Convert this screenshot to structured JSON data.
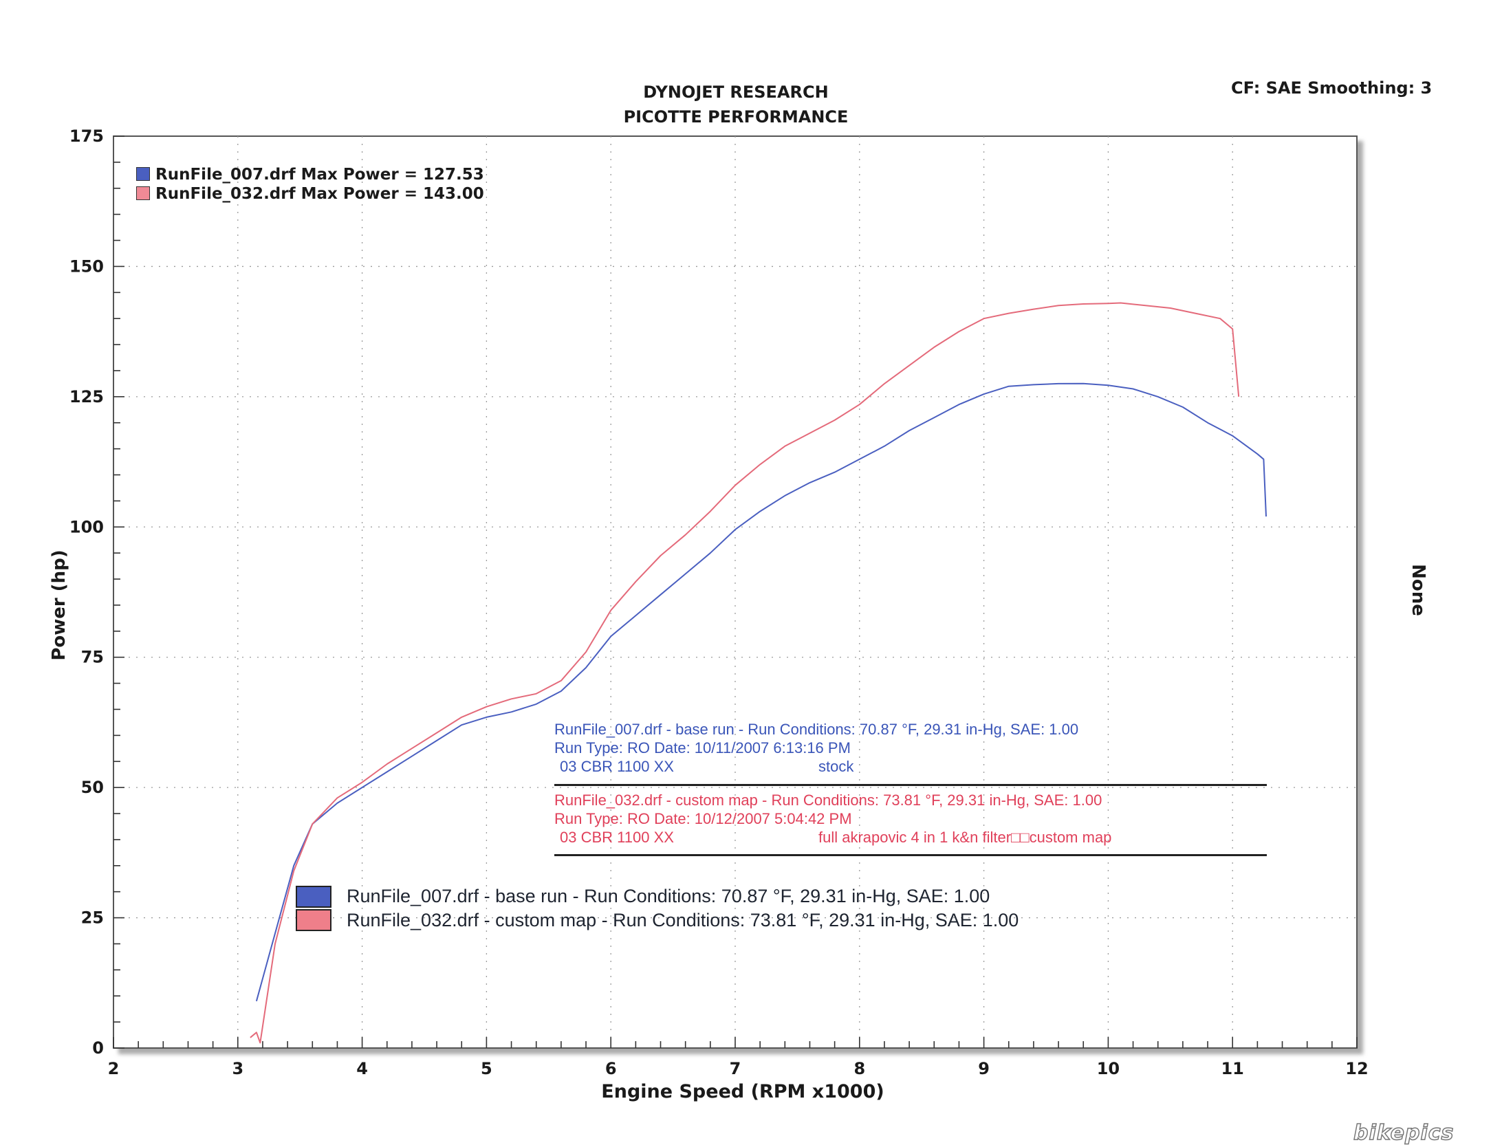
{
  "header": {
    "title_line1": "DYNOJET RESEARCH",
    "title_line2": "PICOTTE PERFORMANCE",
    "cf_smoothing": "CF: SAE  Smoothing: 3"
  },
  "right_axis_label": "None",
  "top_legend": [
    {
      "text": "RunFile_007.drf Max Power = 127.53",
      "color": "#4a5fc0"
    },
    {
      "text": "RunFile_032.drf Max Power = 143.00",
      "color": "#e46a7a"
    }
  ],
  "run_conditions": {
    "run1": {
      "line1": "RunFile_007.drf - base run  -  Run Conditions: 70.87 °F, 29.31 in-Hg, SAE: 1.00",
      "line2": "Run Type: RO  Date: 10/11/2007 6:13:16 PM",
      "line3a": "03 CBR 1100 XX",
      "line3b": "stock",
      "color": "#3a55b8"
    },
    "run2": {
      "line1": "RunFile_032.drf - custom map  -  Run Conditions: 73.81 °F, 29.31 in-Hg, SAE: 1.00",
      "line2": "Run Type: RO  Date: 10/12/2007 5:04:42 PM",
      "line3a": "03 CBR 1100 XX",
      "line3b": "full akrapovic 4 in 1  k&n filter□□custom map",
      "color": "#e0405a"
    }
  },
  "bottom_legend": [
    {
      "text": "RunFile_007.drf - base run  -  Run Conditions: 70.87 °F, 29.31 in-Hg, SAE: 1.00",
      "color": "#4a5fc0"
    },
    {
      "text": "RunFile_032.drf - custom map  -  Run Conditions: 73.81 °F, 29.31 in-Hg, SAE: 1.00",
      "color": "#ef7f8a"
    }
  ],
  "watermark": "bikepics",
  "chart_data": {
    "type": "line",
    "xlabel": "Engine Speed (RPM x1000)",
    "ylabel": "Power (hp)",
    "xlim": [
      2,
      12
    ],
    "ylim": [
      0,
      175
    ],
    "x_ticks": [
      2,
      3,
      4,
      5,
      6,
      7,
      8,
      9,
      10,
      11,
      12
    ],
    "y_ticks": [
      0,
      25,
      50,
      75,
      100,
      125,
      150,
      175
    ],
    "grid": true,
    "legend_position": "top-left",
    "series": [
      {
        "name": "RunFile_007.drf",
        "color": "#4a5fc0",
        "points": [
          [
            3.15,
            9
          ],
          [
            3.3,
            22
          ],
          [
            3.45,
            35
          ],
          [
            3.6,
            43
          ],
          [
            3.8,
            47
          ],
          [
            4.0,
            50
          ],
          [
            4.2,
            53
          ],
          [
            4.4,
            56
          ],
          [
            4.6,
            59
          ],
          [
            4.8,
            62
          ],
          [
            5.0,
            63.5
          ],
          [
            5.2,
            64.5
          ],
          [
            5.4,
            66
          ],
          [
            5.6,
            68.5
          ],
          [
            5.8,
            73
          ],
          [
            6.0,
            79
          ],
          [
            6.2,
            83
          ],
          [
            6.4,
            87
          ],
          [
            6.6,
            91
          ],
          [
            6.8,
            95
          ],
          [
            7.0,
            99.5
          ],
          [
            7.2,
            103
          ],
          [
            7.4,
            106
          ],
          [
            7.6,
            108.5
          ],
          [
            7.8,
            110.5
          ],
          [
            8.0,
            113
          ],
          [
            8.2,
            115.5
          ],
          [
            8.4,
            118.5
          ],
          [
            8.6,
            121
          ],
          [
            8.8,
            123.5
          ],
          [
            9.0,
            125.5
          ],
          [
            9.2,
            127
          ],
          [
            9.4,
            127.3
          ],
          [
            9.6,
            127.5
          ],
          [
            9.8,
            127.53
          ],
          [
            10.0,
            127.2
          ],
          [
            10.2,
            126.5
          ],
          [
            10.4,
            125
          ],
          [
            10.6,
            123
          ],
          [
            10.8,
            120
          ],
          [
            11.0,
            117.5
          ],
          [
            11.2,
            114
          ],
          [
            11.25,
            113
          ],
          [
            11.27,
            102
          ]
        ]
      },
      {
        "name": "RunFile_032.drf",
        "color": "#e46a7a",
        "points": [
          [
            3.1,
            2
          ],
          [
            3.15,
            3
          ],
          [
            3.18,
            1
          ],
          [
            3.3,
            20
          ],
          [
            3.45,
            34
          ],
          [
            3.6,
            43
          ],
          [
            3.8,
            48
          ],
          [
            4.0,
            51
          ],
          [
            4.2,
            54.5
          ],
          [
            4.4,
            57.5
          ],
          [
            4.6,
            60.5
          ],
          [
            4.8,
            63.5
          ],
          [
            5.0,
            65.5
          ],
          [
            5.2,
            67
          ],
          [
            5.4,
            68
          ],
          [
            5.6,
            70.5
          ],
          [
            5.8,
            76
          ],
          [
            6.0,
            84
          ],
          [
            6.2,
            89.5
          ],
          [
            6.4,
            94.5
          ],
          [
            6.6,
            98.5
          ],
          [
            6.8,
            103
          ],
          [
            7.0,
            108
          ],
          [
            7.2,
            112
          ],
          [
            7.4,
            115.5
          ],
          [
            7.6,
            118
          ],
          [
            7.8,
            120.5
          ],
          [
            8.0,
            123.5
          ],
          [
            8.2,
            127.5
          ],
          [
            8.4,
            131
          ],
          [
            8.6,
            134.5
          ],
          [
            8.8,
            137.5
          ],
          [
            9.0,
            140
          ],
          [
            9.2,
            141
          ],
          [
            9.4,
            141.8
          ],
          [
            9.6,
            142.5
          ],
          [
            9.8,
            142.8
          ],
          [
            10.0,
            142.9
          ],
          [
            10.1,
            143.0
          ],
          [
            10.3,
            142.5
          ],
          [
            10.5,
            142
          ],
          [
            10.7,
            141
          ],
          [
            10.9,
            140
          ],
          [
            11.0,
            138
          ],
          [
            11.05,
            125
          ]
        ]
      }
    ]
  }
}
